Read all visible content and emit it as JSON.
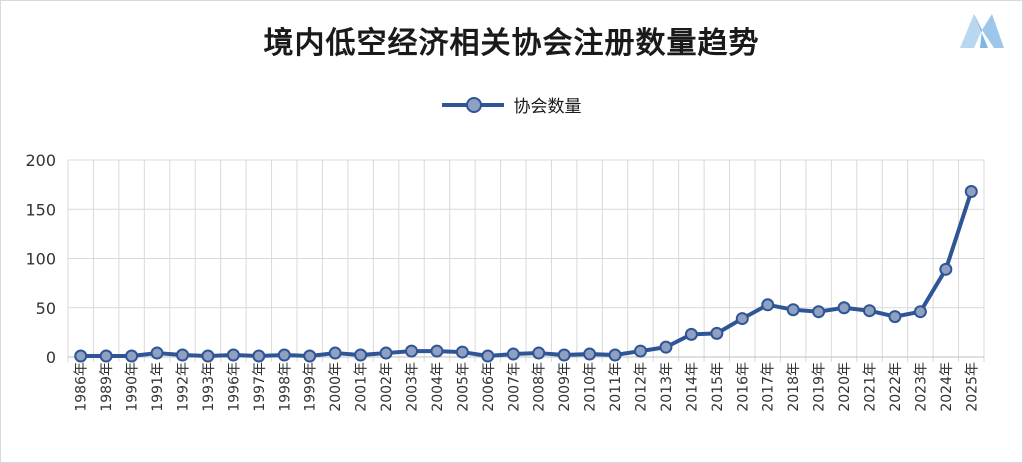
{
  "chart_data": {
    "type": "line",
    "title": "境内低空经济相关协会注册数量趋势",
    "x": [
      "1986年",
      "1989年",
      "1990年",
      "1991年",
      "1992年",
      "1993年",
      "1996年",
      "1997年",
      "1998年",
      "1999年",
      "2000年",
      "2001年",
      "2002年",
      "2003年",
      "2004年",
      "2005年",
      "2006年",
      "2007年",
      "2008年",
      "2009年",
      "2010年",
      "2011年",
      "2012年",
      "2013年",
      "2014年",
      "2015年",
      "2016年",
      "2017年",
      "2018年",
      "2019年",
      "2020年",
      "2021年",
      "2022年",
      "2023年",
      "2024年",
      "2025年"
    ],
    "series": [
      {
        "name": "协会数量",
        "values": [
          1,
          1,
          1,
          4,
          2,
          1,
          2,
          1,
          2,
          1,
          4,
          2,
          4,
          6,
          6,
          5,
          1,
          3,
          4,
          2,
          3,
          2,
          6,
          10,
          23,
          24,
          39,
          53,
          48,
          46,
          50,
          47,
          41,
          46,
          89,
          168
        ]
      }
    ],
    "xlabel": "",
    "ylabel": "",
    "ylim": [
      0,
      200
    ],
    "yticks": [
      0,
      50,
      100,
      150,
      200
    ],
    "grid": true,
    "legend": "top-center",
    "colors": {
      "line": "#2f5597",
      "marker_fill": "#8fa0c0",
      "grid": "#d9d9d9"
    }
  }
}
